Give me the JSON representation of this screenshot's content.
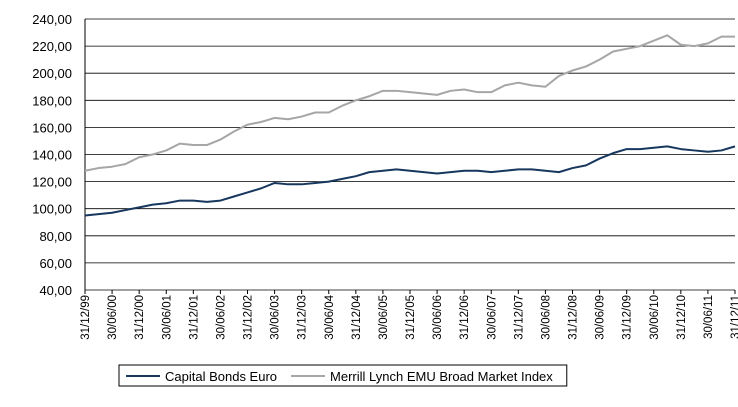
{
  "chart_data": {
    "type": "line",
    "categories": [
      "31/12/99",
      null,
      "30/06/00",
      null,
      "31/12/00",
      null,
      "30/06/01",
      null,
      "31/12/01",
      null,
      "30/06/02",
      null,
      "31/12/02",
      null,
      "30/06/03",
      null,
      "31/12/03",
      null,
      "30/06/04",
      null,
      "31/12/04",
      null,
      "30/06/05",
      null,
      "31/12/05",
      null,
      "30/06/06",
      null,
      "31/12/06",
      null,
      "30/06/07",
      null,
      "31/12/07",
      null,
      "30/06/08",
      null,
      "31/12/08",
      null,
      "30/06/09",
      null,
      "31/12/09",
      null,
      "30/06/10",
      null,
      "31/12/10",
      null,
      "30/06/11",
      null,
      "31/12/11"
    ],
    "series": [
      {
        "name": "Capital Bonds Euro",
        "color": "#17375e",
        "values": [
          95,
          96,
          97,
          99,
          101,
          103,
          104,
          106,
          106,
          105,
          106,
          109,
          112,
          115,
          119,
          118,
          118,
          119,
          120,
          122,
          124,
          127,
          128,
          129,
          128,
          127,
          126,
          127,
          128,
          128,
          127,
          128,
          129,
          129,
          128,
          127,
          130,
          132,
          137,
          141,
          144,
          144,
          145,
          146,
          144,
          143,
          142,
          143,
          146
        ]
      },
      {
        "name": "Merrill Lynch EMU Broad Market Index",
        "color": "#a6a6a6",
        "values": [
          128,
          130,
          131,
          133,
          138,
          140,
          143,
          148,
          147,
          147,
          151,
          157,
          162,
          164,
          167,
          166,
          168,
          171,
          171,
          176,
          180,
          183,
          187,
          187,
          186,
          185,
          184,
          187,
          188,
          186,
          186,
          191,
          193,
          191,
          190,
          198,
          202,
          205,
          210,
          216,
          218,
          220,
          224,
          228,
          221,
          220,
          222,
          227,
          227
        ]
      }
    ],
    "ylim": [
      40,
      240
    ],
    "yticks": [
      {
        "value": 40,
        "label": "40,00"
      },
      {
        "value": 60,
        "label": "60,00"
      },
      {
        "value": 80,
        "label": "80,00"
      },
      {
        "value": 100,
        "label": "100,00"
      },
      {
        "value": 120,
        "label": "120,00"
      },
      {
        "value": 140,
        "label": "140,00"
      },
      {
        "value": 160,
        "label": "160,00"
      },
      {
        "value": 180,
        "label": "180,00"
      },
      {
        "value": 200,
        "label": "200,00"
      },
      {
        "value": 220,
        "label": "220,00"
      },
      {
        "value": 240,
        "label": "240,00"
      }
    ],
    "grid": true,
    "legend": "bottom"
  }
}
